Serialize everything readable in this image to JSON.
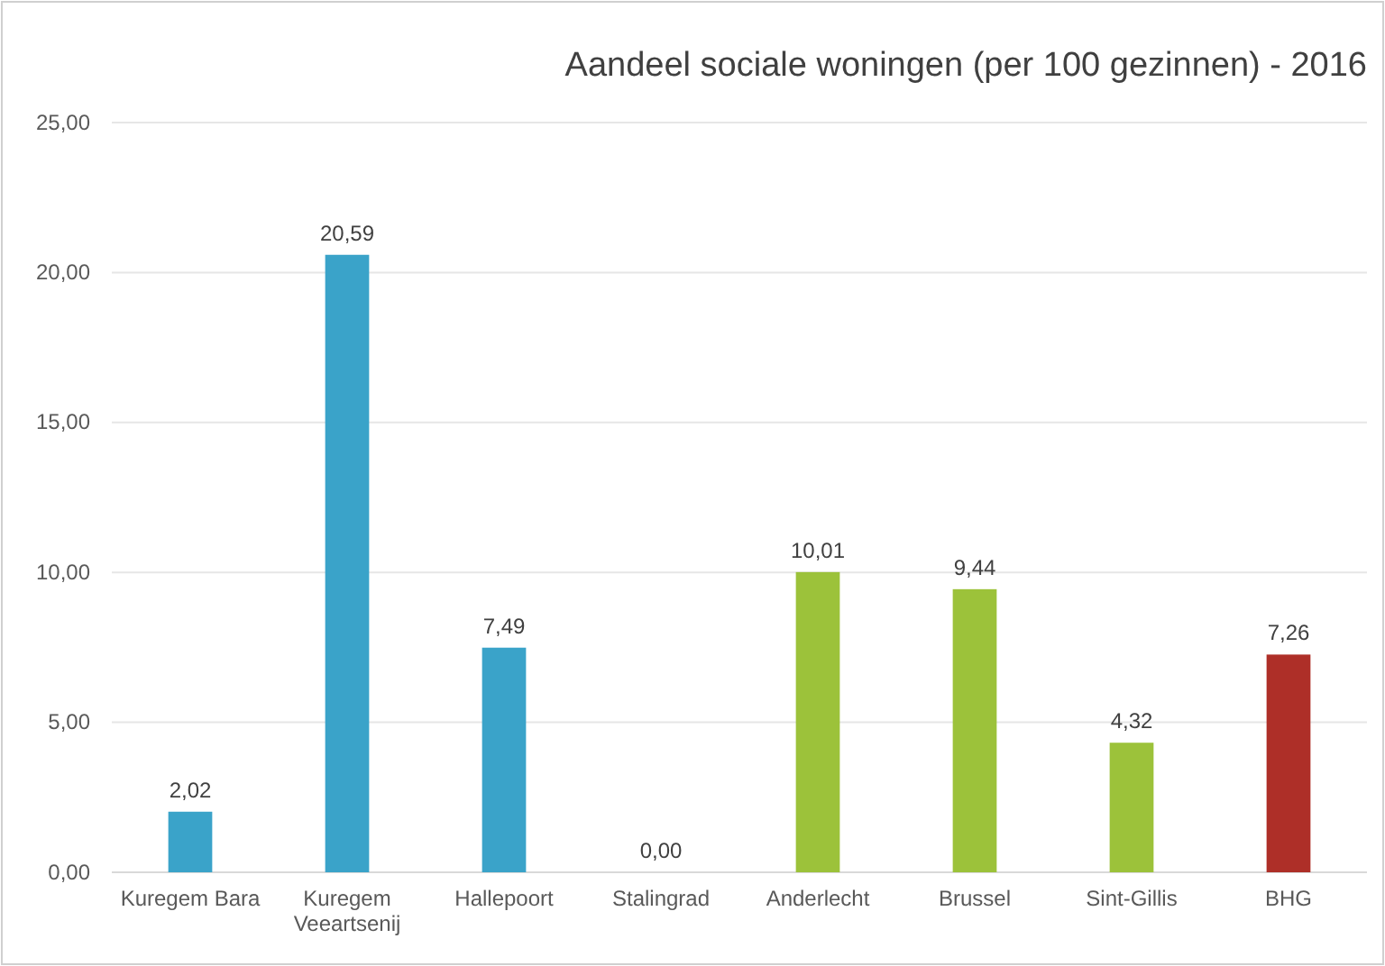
{
  "chart_data": {
    "type": "bar",
    "title": "Aandeel sociale woningen (per 100 gezinnen) - 2016",
    "categories": [
      "Kuregem Bara",
      "Kuregem Veeartsenij",
      "Hallepoort",
      "Stalingrad",
      "Anderlecht",
      "Brussel",
      "Sint-Gillis",
      "BHG"
    ],
    "values": [
      2.02,
      20.59,
      7.49,
      0,
      10.01,
      9.44,
      4.32,
      7.26
    ],
    "colors": [
      "#3aa3c9",
      "#3aa3c9",
      "#3aa3c9",
      "#3aa3c9",
      "#9cc23a",
      "#9cc23a",
      "#9cc23a",
      "#ae2f28"
    ],
    "value_labels": [
      "2,02",
      "20,59",
      "7,49",
      "0,00",
      "10,01",
      "9,44",
      "4,32",
      "7,26"
    ],
    "ylim": [
      0,
      25
    ],
    "yticks": [
      {
        "value": 0,
        "label": "0,00"
      },
      {
        "value": 5,
        "label": "5,00"
      },
      {
        "value": 10,
        "label": "10,00"
      },
      {
        "value": 15,
        "label": "15,00"
      },
      {
        "value": 20,
        "label": "20,00"
      },
      {
        "value": 25,
        "label": "25,00"
      }
    ],
    "grid": "y"
  }
}
